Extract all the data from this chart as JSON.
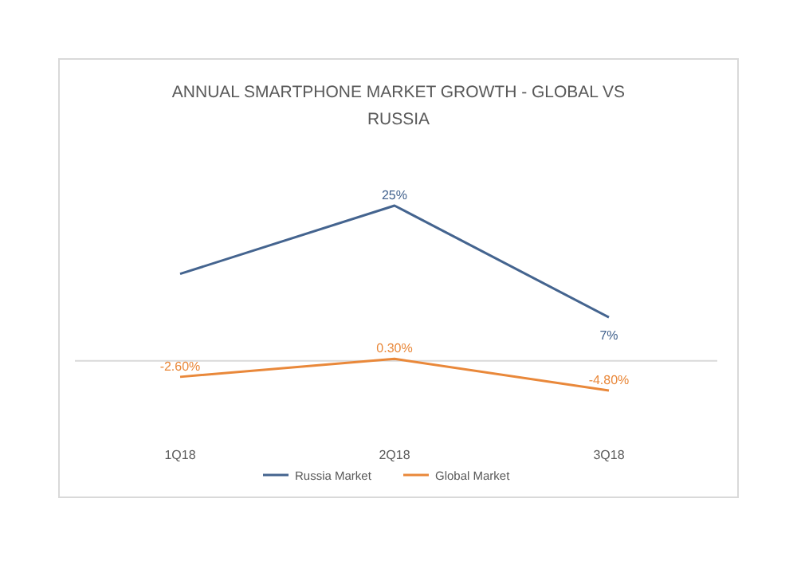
{
  "chart_data": {
    "type": "line",
    "title": "ANNUAL SMARTPHONE MARKET GROWTH - GLOBAL VS RUSSIA",
    "categories": [
      "1Q18",
      "2Q18",
      "3Q18"
    ],
    "series": [
      {
        "name": "Russia Market",
        "color": "#44648f",
        "values": [
          14,
          25,
          7
        ],
        "value_labels": [
          null,
          "25%",
          "7%"
        ]
      },
      {
        "name": "Global Market",
        "color": "#e9883a",
        "values": [
          -2.6,
          0.3,
          -4.8
        ],
        "value_labels": [
          "-2.60%",
          "0.30%",
          "-4.80%"
        ]
      }
    ],
    "legend": "bottom",
    "marker": "none",
    "line_style": "solid"
  }
}
